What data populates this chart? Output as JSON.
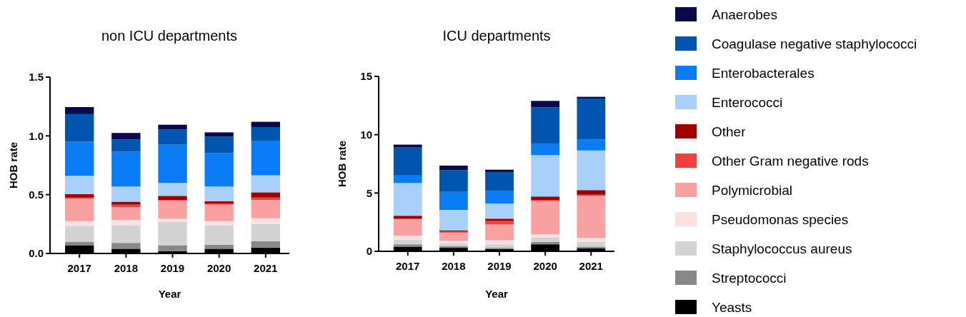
{
  "chart_data": [
    {
      "type": "bar",
      "stacked": true,
      "title": "non ICU departments",
      "xlabel": "Year",
      "ylabel": "HOB rate",
      "categories": [
        "2017",
        "2018",
        "2019",
        "2020",
        "2021"
      ],
      "ylim": [
        0,
        1.5
      ],
      "yticks": [
        {
          "value": 0,
          "label": "0.0"
        },
        {
          "value": 0.5,
          "label": "0.5"
        },
        {
          "value": 1,
          "label": "1.0"
        },
        {
          "value": 1.5,
          "label": "1.5"
        }
      ],
      "legend": "right",
      "series": [
        {
          "name": "Yeasts",
          "color": "#000000",
          "values": [
            0.07,
            0.04,
            0.02,
            0.04,
            0.05
          ]
        },
        {
          "name": "Streptococci",
          "color": "#888888",
          "values": [
            0.03,
            0.05,
            0.05,
            0.035,
            0.055
          ]
        },
        {
          "name": "Staphylococcus aureus",
          "color": "#d3d3d3",
          "values": [
            0.135,
            0.15,
            0.2,
            0.165,
            0.145
          ]
        },
        {
          "name": "Pseudomonas species",
          "color": "#fde0e0",
          "values": [
            0.04,
            0.045,
            0.025,
            0.035,
            0.05
          ]
        },
        {
          "name": "Polymicrobial",
          "color": "#f9a0a0",
          "values": [
            0.19,
            0.11,
            0.155,
            0.14,
            0.155
          ]
        },
        {
          "name": "Other Gram negative rods",
          "color": "#f04040",
          "values": [
            0.01,
            0.02,
            0.005,
            0.01,
            0.02
          ]
        },
        {
          "name": "Other",
          "color": "#a00000",
          "values": [
            0.03,
            0.025,
            0.035,
            0.02,
            0.045
          ]
        },
        {
          "name": "Enterococci",
          "color": "#a8d0fa",
          "values": [
            0.155,
            0.13,
            0.11,
            0.125,
            0.145
          ]
        },
        {
          "name": "Enterobacterales",
          "color": "#0a7cf5",
          "values": [
            0.29,
            0.295,
            0.325,
            0.285,
            0.29
          ]
        },
        {
          "name": "Coagulase negative staphylococci",
          "color": "#0055b0",
          "values": [
            0.235,
            0.105,
            0.13,
            0.14,
            0.12
          ]
        },
        {
          "name": "Anaerobes",
          "color": "#0a0a4a",
          "values": [
            0.06,
            0.055,
            0.04,
            0.035,
            0.045
          ]
        }
      ]
    },
    {
      "type": "bar",
      "stacked": true,
      "title": "ICU departments",
      "xlabel": "Year",
      "ylabel": "HOB rate",
      "categories": [
        "2017",
        "2018",
        "2019",
        "2020",
        "2021"
      ],
      "ylim": [
        0,
        15
      ],
      "yticks": [
        0,
        5,
        10,
        15
      ],
      "series": [
        {
          "color": "#000000",
          "values": [
            0.4,
            0.3,
            0.2,
            0.6,
            0.25
          ]
        },
        {
          "color": "#888888",
          "values": [
            0.2,
            0.15,
            0.1,
            0.2,
            0.15
          ]
        },
        {
          "color": "#d3d3d3",
          "values": [
            0.4,
            0.25,
            0.3,
            0.4,
            0.4
          ]
        },
        {
          "color": "#fde0e0",
          "values": [
            0.35,
            0.2,
            0.35,
            0.25,
            0.35
          ]
        },
        {
          "color": "#f9a0a0",
          "values": [
            1.4,
            0.7,
            1.35,
            2.85,
            3.6
          ]
        },
        {
          "color": "#f04040",
          "values": [
            0.05,
            0.1,
            0.3,
            0.1,
            0.1
          ]
        },
        {
          "color": "#a00000",
          "values": [
            0.25,
            0.1,
            0.2,
            0.3,
            0.4
          ]
        },
        {
          "color": "#a8d0fa",
          "values": [
            2.8,
            1.75,
            1.3,
            3.55,
            3.4
          ]
        },
        {
          "color": "#0a7cf5",
          "values": [
            0.65,
            1.55,
            1.1,
            1.0,
            0.95
          ]
        },
        {
          "color": "#0055b0",
          "values": [
            2.4,
            1.85,
            1.6,
            3.1,
            3.5
          ]
        },
        {
          "color": "#0a0a4a",
          "values": [
            0.25,
            0.4,
            0.2,
            0.55,
            0.15
          ]
        }
      ]
    }
  ]
}
